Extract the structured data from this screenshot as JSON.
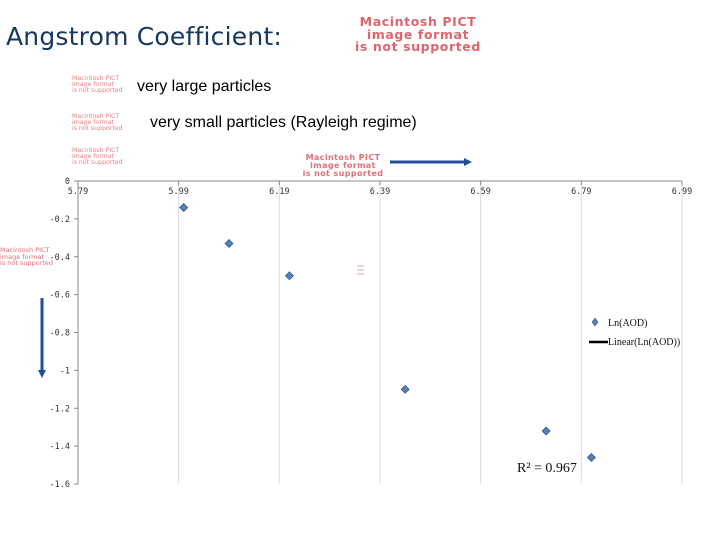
{
  "title": "Angstrom Coefficient:",
  "pict_notices": {
    "big": [
      "Macintosh PICT",
      "image format",
      "is not supported"
    ],
    "small": [
      "Macintosh PICT",
      "image format",
      "is not supported"
    ]
  },
  "captions": {
    "large": "very large particles",
    "small": "very small particles (Rayleigh regime)"
  },
  "colors": {
    "title": "#17375e",
    "point": "#4f81bd",
    "arrow": "#1f4e9c",
    "pict_text": "#d94a55"
  },
  "chart_data": {
    "type": "scatter",
    "title": "",
    "xlabel": "",
    "ylabel": "",
    "x_ticks": [
      "5.79",
      "5.99",
      "6.19",
      "6.39",
      "6.59",
      "6.79",
      "6.99"
    ],
    "y_ticks": [
      "0",
      "-0.2",
      "-0.4",
      "-0.6",
      "-0.8",
      "-1",
      "-1.2",
      "-1.4",
      "-1.6"
    ],
    "xlim": [
      5.79,
      6.99
    ],
    "ylim": [
      -1.6,
      0
    ],
    "x_axis_position": "top",
    "grid": "vertical",
    "series": [
      {
        "name": "Ln(AOD)",
        "marker": "diamond",
        "points": [
          {
            "x": 6.0,
            "y": -0.14
          },
          {
            "x": 6.09,
            "y": -0.33
          },
          {
            "x": 6.21,
            "y": -0.5
          },
          {
            "x": 6.44,
            "y": -1.1
          },
          {
            "x": 6.72,
            "y": -1.32
          },
          {
            "x": 6.81,
            "y": -1.46
          }
        ]
      }
    ],
    "trendline_name": "Linear(Ln(AOD))",
    "legend_placement": "right",
    "annotation": "R² = 0.967"
  }
}
